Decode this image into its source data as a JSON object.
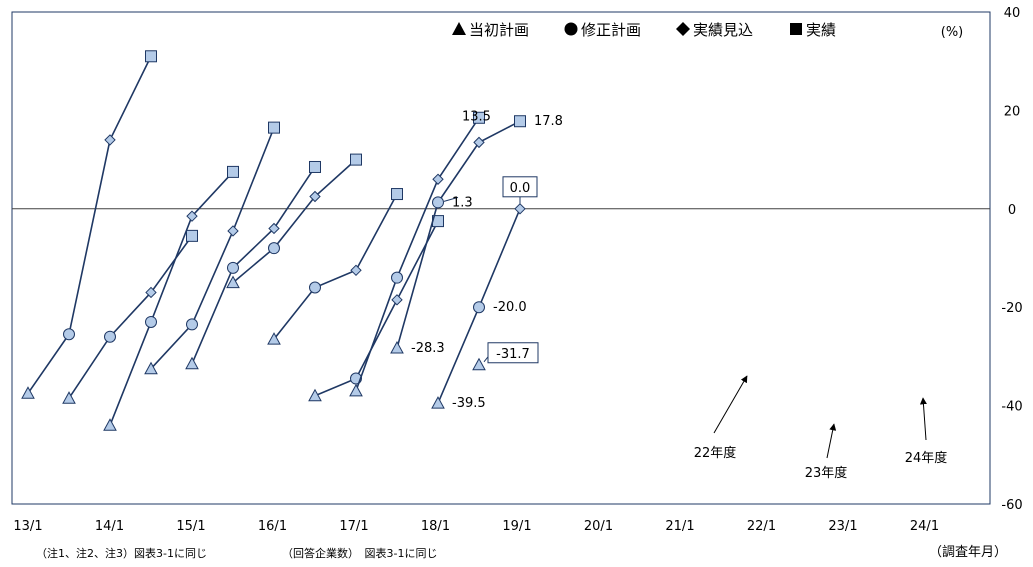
{
  "chart_data": {
    "type": "line",
    "unit": "(%)",
    "ylim": [
      -60,
      40
    ],
    "y_ticks": [
      40,
      20,
      0,
      -20,
      -40,
      -60
    ],
    "x_ticks": [
      "13/1",
      "14/1",
      "15/1",
      "16/1",
      "17/1",
      "18/1",
      "19/1",
      "20/1",
      "21/1",
      "22/1",
      "23/1",
      "24/1"
    ],
    "xlabel": "（調査年月）",
    "legend": [
      {
        "marker": "triangle",
        "label": "当初計画"
      },
      {
        "marker": "circle",
        "label": "修正計画"
      },
      {
        "marker": "diamond",
        "label": "実績見込"
      },
      {
        "marker": "square",
        "label": "実績"
      }
    ],
    "stage_markers": [
      "triangle",
      "circle",
      "diamond",
      "square"
    ],
    "series": [
      {
        "start": 0,
        "values": [
          -37.5,
          -25.5,
          14,
          31
        ]
      },
      {
        "start": 1,
        "values": [
          -38.5,
          -26,
          -17,
          -5.5
        ]
      },
      {
        "start": 2,
        "values": [
          -44,
          -23,
          -1.5,
          7.5
        ]
      },
      {
        "start": 3,
        "values": [
          -32.5,
          -23.5,
          -4.5,
          16.5
        ]
      },
      {
        "start": 4,
        "values": [
          -31.5,
          -12,
          -4,
          8.5
        ]
      },
      {
        "start": 5,
        "values": [
          -15,
          -8,
          2.5,
          10
        ]
      },
      {
        "start": 6,
        "values": [
          -26.5,
          -16,
          -12.5,
          3
        ]
      },
      {
        "start": 7,
        "values": [
          -38,
          -34.5,
          -18.5,
          -2.5
        ]
      },
      {
        "start": 8,
        "values": [
          -37,
          -14,
          6,
          18.5
        ]
      },
      {
        "start": 9,
        "values": [
          -28.3,
          1.3,
          13.5,
          17.8
        ]
      },
      {
        "start": 10,
        "values": [
          -39.5,
          -20.0,
          0.0
        ]
      },
      {
        "start": 11,
        "values": [
          -31.7
        ]
      }
    ],
    "data_labels": [
      {
        "series": 9,
        "point": 0,
        "text": "-28.3",
        "boxed": false
      },
      {
        "series": 9,
        "point": 1,
        "text": "1.3",
        "boxed": false
      },
      {
        "series": 9,
        "point": 2,
        "text": "13.5",
        "boxed": false
      },
      {
        "series": 9,
        "point": 3,
        "text": "17.8",
        "boxed": false
      },
      {
        "series": 10,
        "point": 0,
        "text": "-39.5",
        "boxed": false
      },
      {
        "series": 10,
        "point": 1,
        "text": "-20.0",
        "boxed": false
      },
      {
        "series": 10,
        "point": 2,
        "text": "0.0",
        "boxed": true
      },
      {
        "series": 11,
        "point": 0,
        "text": "-31.7",
        "boxed": true
      }
    ],
    "annotations": [
      {
        "text": "22年度",
        "target_series": 9
      },
      {
        "text": "23年度",
        "target_series": 10
      },
      {
        "text": "24年度",
        "target_series": 11
      }
    ],
    "colors": {
      "line": "#1f3864",
      "marker_fill": "#b4cbe8",
      "frame": "#1f3864",
      "zero_line": "#404040"
    }
  },
  "footnotes": {
    "note1": "（注1、注2、注3）図表3-1に同じ",
    "note2": "（回答企業数）　図表3-1に同じ"
  }
}
